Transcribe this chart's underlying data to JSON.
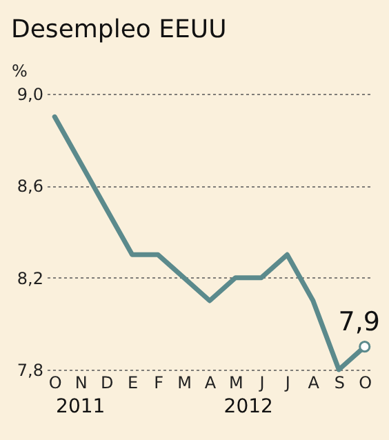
{
  "chart_data": {
    "type": "line",
    "title": "Desempleo EEUU",
    "ylabel": "%",
    "categories": [
      "O",
      "N",
      "D",
      "E",
      "F",
      "M",
      "A",
      "M",
      "J",
      "J",
      "A",
      "S",
      "O"
    ],
    "series": [
      {
        "color": "#5b8a8c",
        "values": [
          8.9,
          8.7,
          8.5,
          8.3,
          8.3,
          8.2,
          8.1,
          8.2,
          8.2,
          8.3,
          8.1,
          7.8,
          7.9
        ],
        "value_labels": [
          null,
          null,
          null,
          null,
          null,
          null,
          null,
          null,
          null,
          null,
          null,
          null,
          "7,9"
        ]
      }
    ],
    "annotations": [
      "2011",
      "2012"
    ],
    "ylim": [
      7.8,
      9.0
    ],
    "yticks": [
      {
        "value": 7.8,
        "label": "7,8"
      },
      {
        "value": 8.2,
        "label": "8,2"
      },
      {
        "value": 8.6,
        "label": "8,6"
      },
      {
        "value": 9.0,
        "label": "9,0"
      }
    ],
    "grid": "y"
  }
}
